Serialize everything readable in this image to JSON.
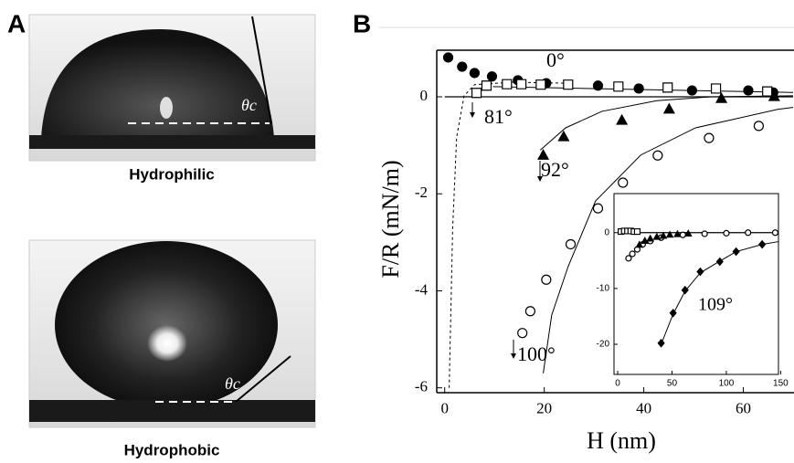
{
  "panel_a": {
    "label": "A",
    "images": [
      {
        "caption": "Hydrophilic",
        "angle_label": "θc"
      },
      {
        "caption": "Hydrophobic",
        "angle_label": "θc"
      }
    ]
  },
  "panel_b_label": "B",
  "chart_data": {
    "type": "scatter",
    "x_label": "H (nm)",
    "y_label": "F/R (mN/m)",
    "xlim": [
      -1.6,
      70
    ],
    "ylim": [
      -6.1,
      0.96
    ],
    "xticks": [
      0,
      20,
      40,
      60
    ],
    "yticks": [
      0,
      -2,
      -4,
      -6
    ],
    "annotations": [
      "0°",
      "81°",
      "92°",
      "100°"
    ],
    "series": [
      {
        "marker": "circle-filled",
        "color": "#000000",
        "x": [
          0.7,
          3.5,
          6,
          9.5,
          14.7,
          20.4,
          30.8,
          39,
          49.7,
          61,
          66
        ],
        "values": [
          0.81,
          0.62,
          0.49,
          0.42,
          0.34,
          0.28,
          0.23,
          0.17,
          0.13,
          0.13,
          0.09
        ]
      },
      {
        "marker": "square-open",
        "color": "#000000",
        "x": [
          6.4,
          8.4,
          12.5,
          15.4,
          19.3,
          24.8,
          34.9,
          44.8,
          54.5,
          64.8
        ],
        "values": [
          0.08,
          0.23,
          0.26,
          0.26,
          0.25,
          0.25,
          0.21,
          0.19,
          0.17,
          0.11
        ]
      },
      {
        "marker": "triangle-filled",
        "color": "#000000",
        "x": [
          19.8,
          23.9,
          35.6,
          45.1,
          55.6,
          66.2
        ],
        "values": [
          -1.21,
          -0.83,
          -0.49,
          -0.26,
          -0.04,
          0
        ]
      },
      {
        "marker": "circle-open",
        "color": "#000000",
        "x": [
          15.6,
          17.2,
          20.4,
          25.3,
          30.8,
          35.8,
          42.8,
          53.1,
          63.1
        ],
        "values": [
          -4.87,
          -4.42,
          -3.77,
          -3.04,
          -2.3,
          -1.77,
          -1.21,
          -0.85,
          -0.6
        ]
      }
    ],
    "fits": [
      {
        "dashed": false,
        "x": [
          9.7,
          39,
          70
        ],
        "values": [
          0.21,
          0.15,
          0.09
        ]
      },
      {
        "dashed": true,
        "x": [
          0.9,
          1.6,
          2.4,
          3.9,
          6,
          13.4,
          25
        ],
        "values": [
          -6,
          -2.7,
          -0.83,
          0.02,
          0.25,
          0.3,
          0.28
        ]
      },
      {
        "dashed": false,
        "x": [
          19.2,
          24.3,
          31.6,
          42.6,
          53.6,
          70
        ],
        "values": [
          -1.1,
          -0.64,
          -0.3,
          -0.08,
          0,
          0.02
        ]
      },
      {
        "dashed": false,
        "x": [
          19.8,
          21.5,
          24.8,
          30.3,
          39.4,
          50.4,
          66.9,
          70
        ],
        "values": [
          -5.7,
          -4.5,
          -3.5,
          -2.15,
          -1.2,
          -0.64,
          -0.26,
          -0.22
        ]
      }
    ],
    "inset": {
      "type": "scatter",
      "xlim": [
        -3.4,
        148
      ],
      "ylim": [
        -25.4,
        7
      ],
      "xticks": [
        0,
        50,
        100,
        150
      ],
      "yticks": [
        0,
        -10,
        -20
      ],
      "annotations": [
        "109°"
      ],
      "series": [
        {
          "marker": "diamond-filled",
          "color": "#000000",
          "x": [
            40,
            51,
            62,
            76,
            94,
            109,
            133
          ],
          "values": [
            -19.8,
            -14.4,
            -10.3,
            -7,
            -5.2,
            -3.4,
            -2.1
          ]
        },
        {
          "marker": "circle-open",
          "color": "#000000",
          "x": [
            10,
            13.5,
            18,
            23,
            30,
            40,
            60,
            80,
            100,
            120,
            145
          ],
          "values": [
            -4.6,
            -3.8,
            -3,
            -2.1,
            -1.5,
            -0.9,
            -0.4,
            -0.2,
            -0.1,
            0,
            0
          ]
        },
        {
          "marker": "triangle-filled",
          "color": "#000000",
          "x": [
            20,
            25,
            30,
            36,
            42,
            48,
            55,
            65
          ],
          "values": [
            -2.2,
            -1.5,
            -1.1,
            -0.8,
            -0.6,
            -0.4,
            -0.3,
            -0.2
          ]
        },
        {
          "marker": "square-open",
          "color": "#000000",
          "x": [
            3,
            6,
            9,
            12,
            15,
            18
          ],
          "values": [
            0.2,
            0.3,
            0.3,
            0.3,
            0.2,
            0.2
          ]
        }
      ],
      "fits": [
        {
          "dashed": false,
          "x": [
            40,
            51,
            62,
            76,
            94,
            109,
            133,
            148
          ],
          "values": [
            -20,
            -14.6,
            -10.5,
            -7.2,
            -5.1,
            -3.4,
            -2.1,
            -1.6
          ]
        }
      ]
    }
  }
}
